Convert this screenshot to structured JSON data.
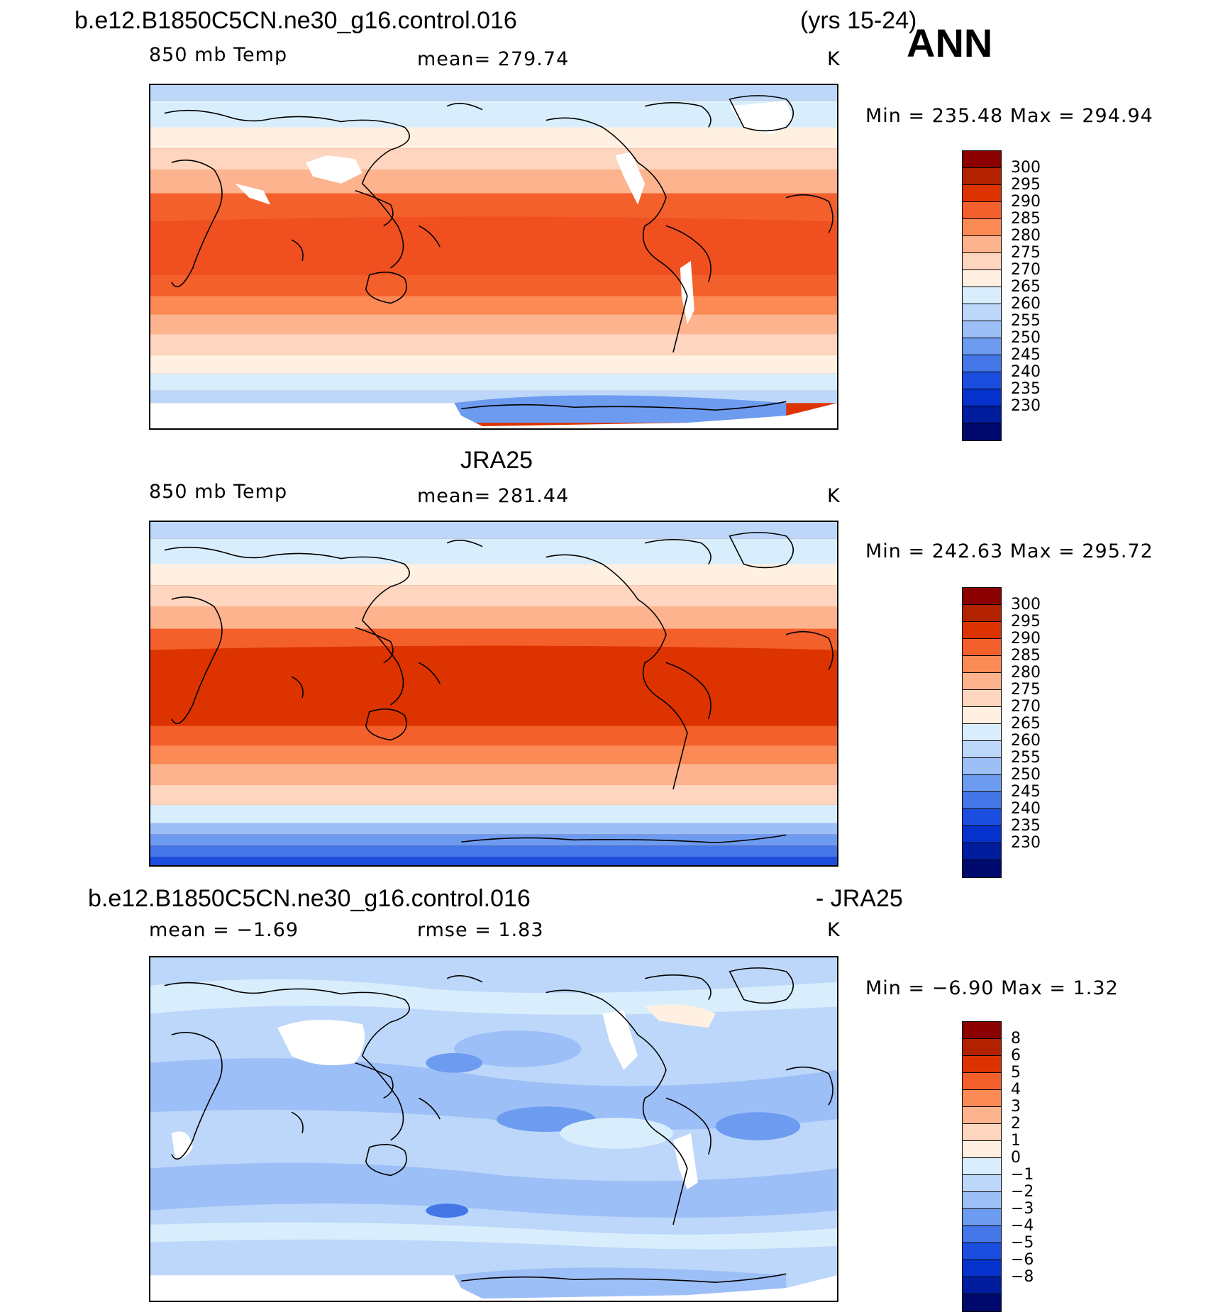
{
  "header": {
    "case_name": "b.e12.B1850C5CN.ne30_g16.control.016",
    "years": "(yrs 15-24)",
    "season": "ANN"
  },
  "panels": [
    {
      "id": "model",
      "title": "",
      "left_label": "850 mb Temp",
      "center_label": "mean= 279.74",
      "right_label": "K",
      "minmax": "Min = 235.48 Max = 294.94",
      "colorbar": {
        "colors": [
          "#8b0000",
          "#b22200",
          "#dd3300",
          "#f4602c",
          "#fb8a55",
          "#fdb38d",
          "#fed5be",
          "#fff0e2",
          "#d9eefc",
          "#bdd7fa",
          "#9dbff7",
          "#6d9bf0",
          "#4476e8",
          "#1b4edf",
          "#0532cc",
          "#001d9e",
          "#000a6e"
        ],
        "labels": [
          "300",
          "295",
          "290",
          "285",
          "280",
          "275",
          "270",
          "265",
          "260",
          "255",
          "250",
          "245",
          "240",
          "235",
          "230"
        ]
      }
    },
    {
      "id": "obs",
      "title": "JRA25",
      "left_label": "850 mb Temp",
      "center_label": "mean= 281.44",
      "right_label": "K",
      "minmax": "Min = 242.63 Max = 295.72",
      "colorbar": {
        "colors": [
          "#8b0000",
          "#b22200",
          "#dd3300",
          "#f4602c",
          "#fb8a55",
          "#fdb38d",
          "#fed5be",
          "#fff0e2",
          "#d9eefc",
          "#bdd7fa",
          "#9dbff7",
          "#6d9bf0",
          "#4476e8",
          "#1b4edf",
          "#0532cc",
          "#001d9e",
          "#000a6e"
        ],
        "labels": [
          "300",
          "295",
          "290",
          "285",
          "280",
          "275",
          "270",
          "265",
          "260",
          "255",
          "250",
          "245",
          "240",
          "235",
          "230"
        ]
      }
    },
    {
      "id": "diff",
      "title": "b.e12.B1850C5CN.ne30_g16.control.016",
      "title_right": "- JRA25",
      "left_label": "mean =   −1.69",
      "center_label": "rmse =    1.83",
      "right_label": "K",
      "minmax": "Min =  −6.90 Max =    1.32",
      "colorbar": {
        "colors": [
          "#8b0000",
          "#b22200",
          "#dd3300",
          "#f4602c",
          "#fb8a55",
          "#fdb38d",
          "#fed5be",
          "#fff0e2",
          "#d9eefc",
          "#bdd7fa",
          "#9dbff7",
          "#6d9bf0",
          "#4476e8",
          "#1b4edf",
          "#0532cc",
          "#001d9e",
          "#000a6e"
        ],
        "labels": [
          "8",
          "6",
          "5",
          "4",
          "3",
          "2",
          "1",
          "0",
          "−1",
          "−2",
          "−3",
          "−4",
          "−5",
          "−6",
          "−8"
        ]
      }
    }
  ]
}
